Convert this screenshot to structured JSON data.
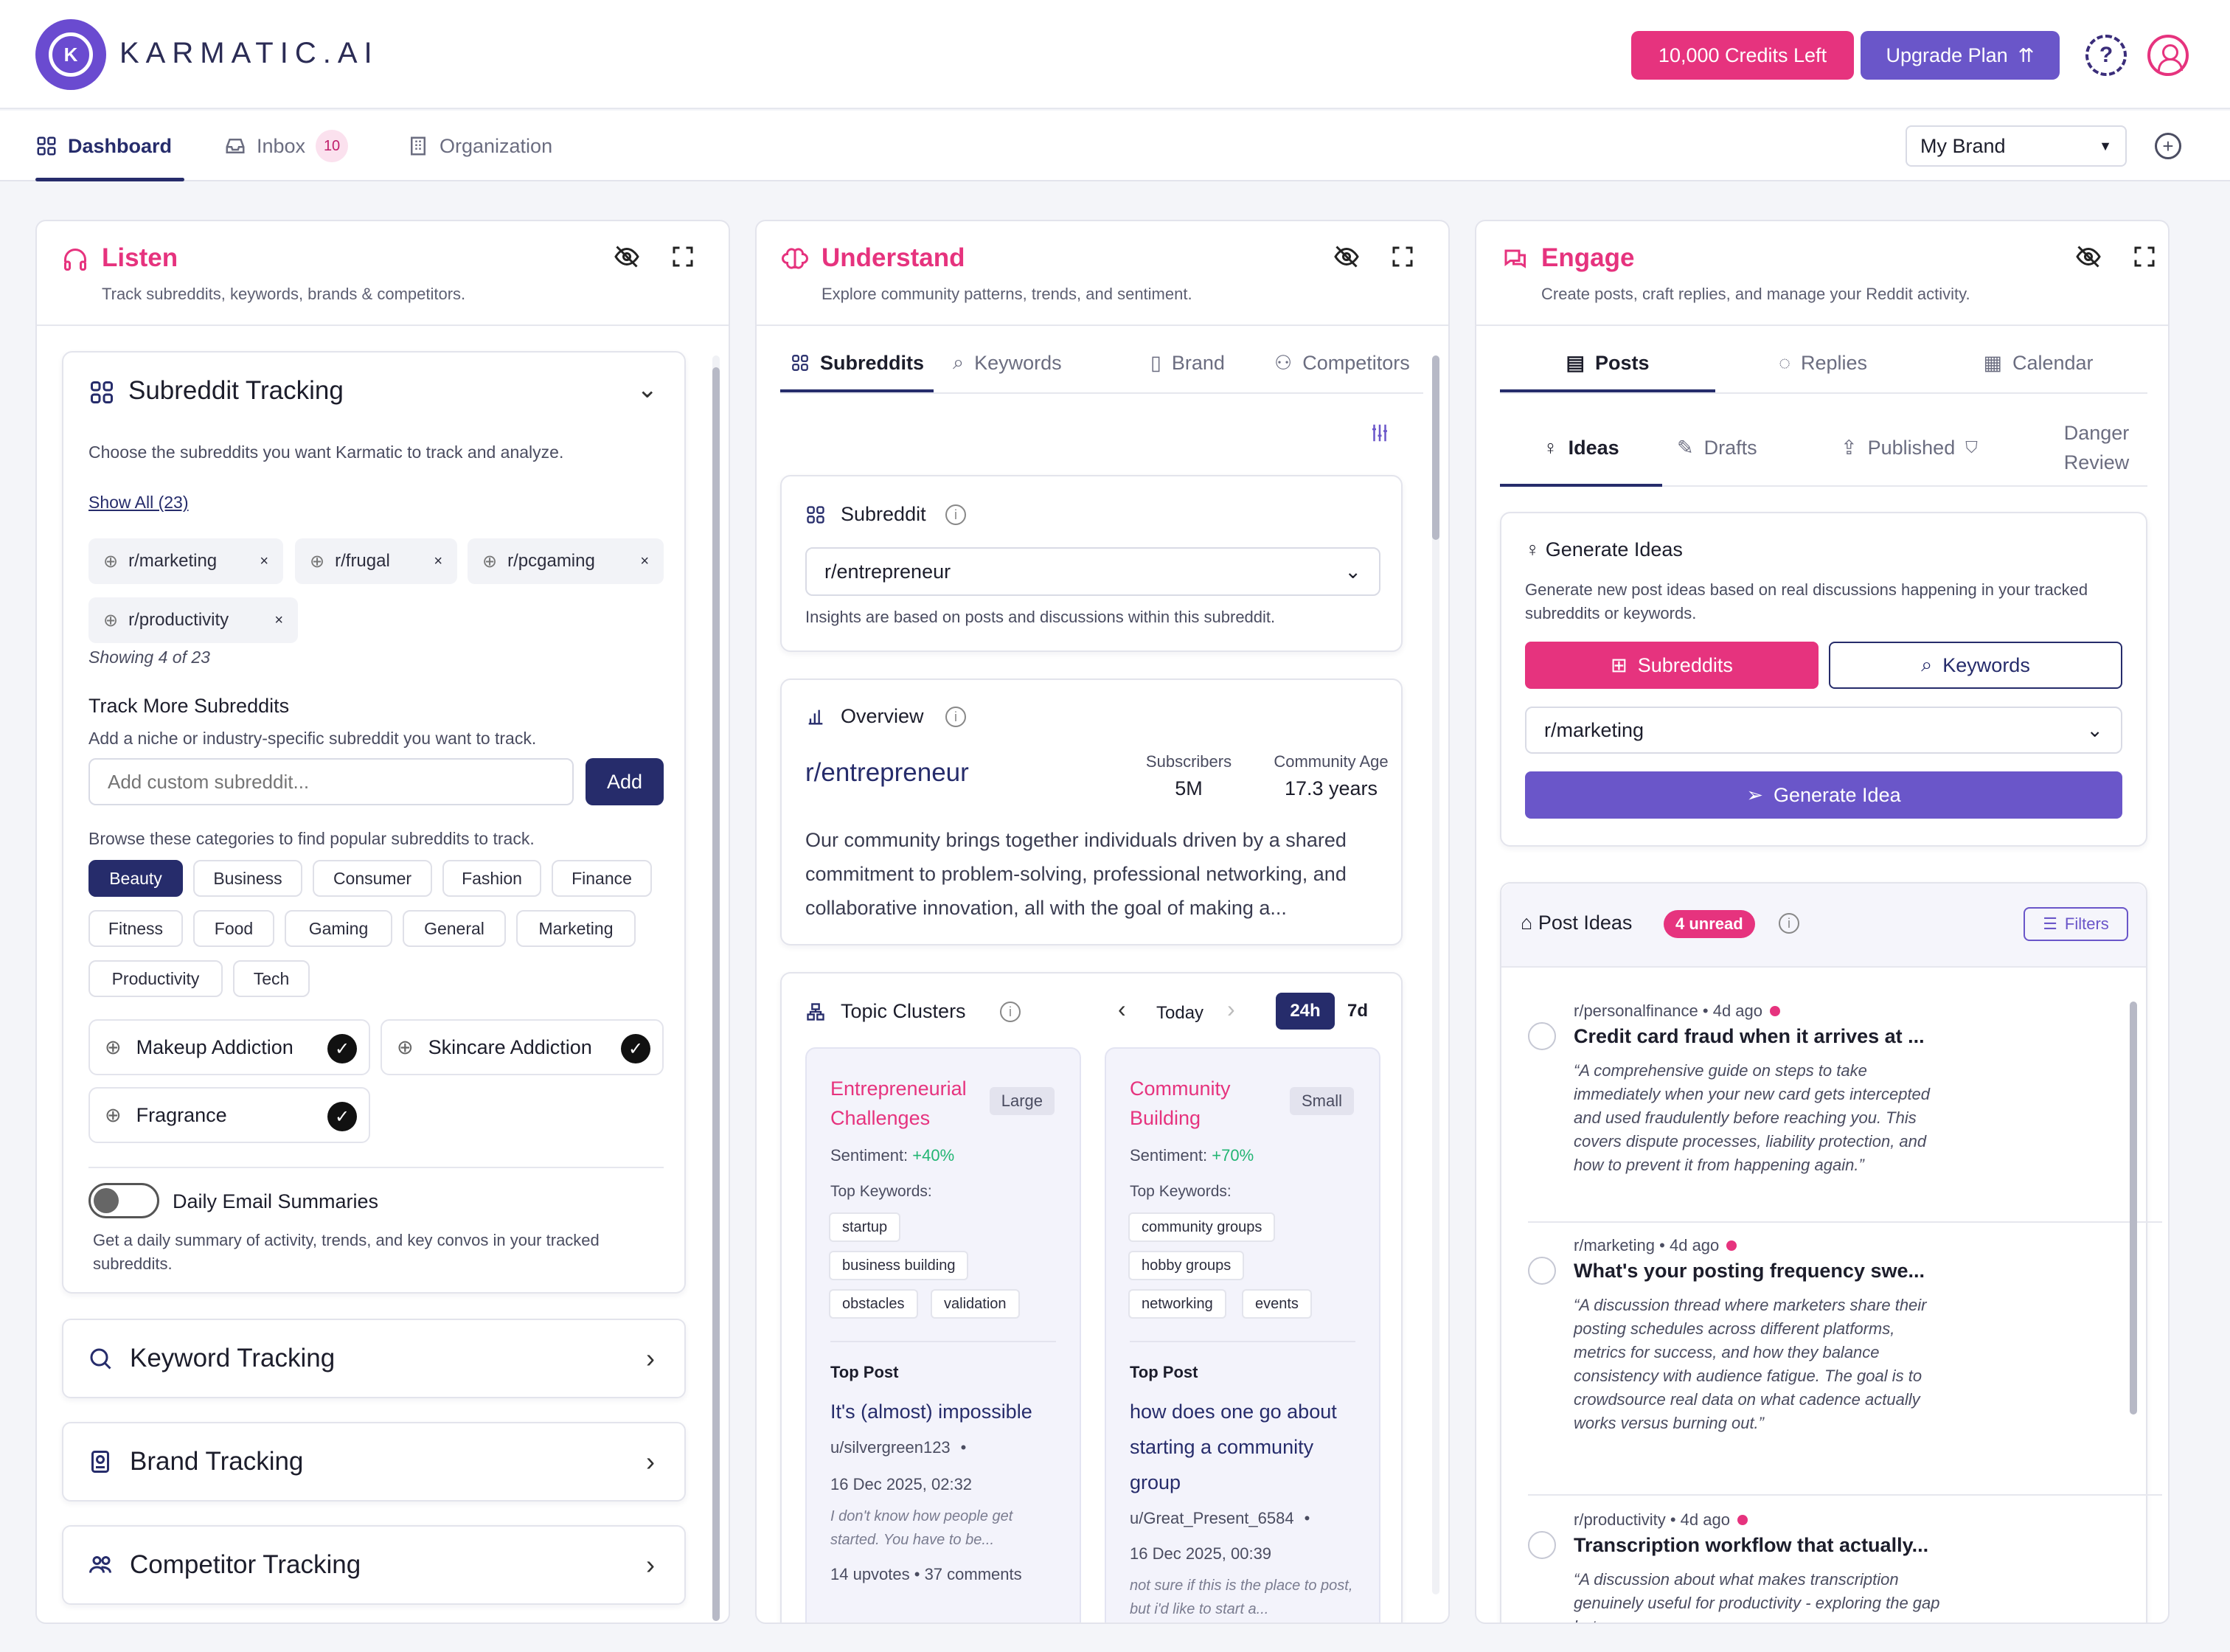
{
  "header": {
    "brand": "KARMATIC.AI",
    "logo_letter": "K",
    "credits": "10,000 Credits Left",
    "upgrade": "Upgrade Plan",
    "help": "?"
  },
  "nav": {
    "tabs": [
      {
        "label": "Dashboard"
      },
      {
        "label": "Inbox",
        "badge": "10"
      },
      {
        "label": "Organization"
      }
    ],
    "brand_select": "My Brand"
  },
  "listen": {
    "title": "Listen",
    "subtitle": "Track subreddits, keywords, brands & competitors.",
    "tracking": {
      "title": "Subreddit Tracking",
      "desc": "Choose the subreddits you want Karmatic to track and analyze.",
      "show_all": "Show All (23)",
      "chips": [
        "r/marketing",
        "r/frugal",
        "r/pcgaming",
        "r/productivity"
      ],
      "showing": "Showing 4 of 23",
      "track_more": "Track More Subreddits",
      "track_more_desc": "Add a niche or industry-specific subreddit you want to track.",
      "input_placeholder": "Add custom subreddit...",
      "add": "Add",
      "browse": "Browse these categories to find popular subreddits to track.",
      "categories": [
        "Beauty",
        "Business",
        "Consumer",
        "Fashion",
        "Finance",
        "Fitness",
        "Food",
        "Gaming",
        "General",
        "Marketing",
        "Productivity",
        "Tech"
      ],
      "selected_category": "Beauty",
      "suggested": [
        "Makeup Addiction",
        "Skincare Addiction",
        "Fragrance"
      ],
      "email_label": "Daily Email Summaries",
      "email_desc": "Get a daily summary of activity, trends, and key convos in your tracked subreddits.",
      "email_enabled": false
    },
    "accordions": [
      "Keyword Tracking",
      "Brand Tracking",
      "Competitor Tracking"
    ]
  },
  "understand": {
    "title": "Understand",
    "subtitle": "Explore community patterns, trends, and sentiment.",
    "tabs": [
      "Subreddits",
      "Keywords",
      "Brand",
      "Competitors"
    ],
    "subreddit_label": "Subreddit",
    "subreddit_value": "r/entrepreneur",
    "subreddit_note": "Insights are based on posts and discussions within this subreddit.",
    "overview": {
      "label": "Overview",
      "name": "r/entrepreneur",
      "subs_label": "Subscribers",
      "subs": "5M",
      "age_label": "Community Age",
      "age": "17.3 years",
      "desc": "Our community brings together individuals driven by a shared commitment to problem-solving, professional networking, and collaborative innovation, all with the goal of making a..."
    },
    "clusters": {
      "label": "Topic Clusters",
      "period": "Today",
      "range_active": "24h",
      "range_other": "7d",
      "items": [
        {
          "title": "Entrepreneurial Challenges",
          "size": "Large",
          "sentiment_label": "Sentiment:",
          "sentiment": "+40%",
          "kw_label": "Top Keywords:",
          "keywords": [
            "startup",
            "business building",
            "obstacles",
            "validation"
          ],
          "top_post_label": "Top Post",
          "post_title": "It's (almost) impossible",
          "author": "u/silvergreen123",
          "date": "16 Dec 2025, 02:32",
          "excerpt": "I don't know how people get started. You have to be...",
          "stats": "14 upvotes • 37 comments"
        },
        {
          "title": "Community Building",
          "size": "Small",
          "sentiment_label": "Sentiment:",
          "sentiment": "+70%",
          "kw_label": "Top Keywords:",
          "keywords": [
            "community groups",
            "hobby groups",
            "networking",
            "events"
          ],
          "top_post_label": "Top Post",
          "post_title": "how does one go about starting a community group",
          "author": "u/Great_Present_6584",
          "date": "16 Dec 2025, 00:39",
          "excerpt": "not sure if this is the place to post, but i'd like to start a..."
        }
      ]
    }
  },
  "engage": {
    "title": "Engage",
    "subtitle": "Create posts, craft replies, and manage your Reddit activity.",
    "tabs": [
      "Posts",
      "Replies",
      "Calendar"
    ],
    "subtabs": [
      "Ideas",
      "Drafts",
      "Published",
      "Danger Review"
    ],
    "gen": {
      "title": "Generate Ideas",
      "desc": "Generate new post ideas based on real discussions happening in your tracked subreddits or keywords.",
      "btn_sub": "Subreddits",
      "btn_kw": "Keywords",
      "select": "r/marketing",
      "action": "Generate Idea"
    },
    "post_ideas": {
      "label": "Post Ideas",
      "unread": "4 unread",
      "filters": "Filters",
      "items": [
        {
          "sub": "r/personalfinance",
          "age": "4d ago",
          "title": "Credit card fraud when it arrives at ...",
          "quote": "“A comprehensive guide on steps to take immediately when your new card gets intercepted and used fraudulently before reaching you. This covers dispute processes, liability protection, and how to prevent it from happening again.”"
        },
        {
          "sub": "r/marketing",
          "age": "4d ago",
          "title": "What's your posting frequency swe...",
          "quote": "“A discussion thread where marketers share their posting schedules across different platforms, metrics for success, and how they balance consistency with audience fatigue. The goal is to crowdsource real data on what cadence actually works versus burning out.”"
        },
        {
          "sub": "r/productivity",
          "age": "4d ago",
          "title": "Transcription workflow that actually...",
          "quote": "“A discussion about what makes transcription genuinely useful for productivity - exploring the gap between"
        }
      ]
    }
  },
  "colors": {
    "accent": "#e6337e",
    "primary": "#262c6b",
    "purple": "#6a56c9",
    "positive": "#22b573"
  }
}
